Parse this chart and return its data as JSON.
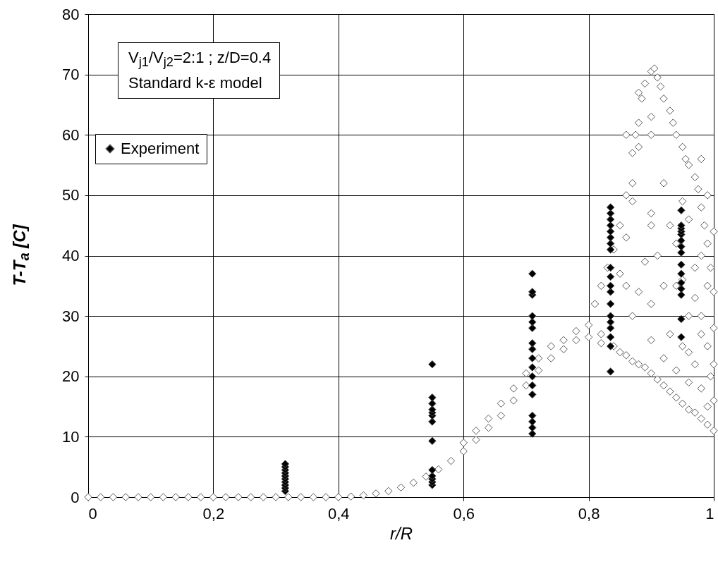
{
  "chart_data": {
    "type": "scatter",
    "xlabel": "r/R",
    "ylabel": "T-T$_{a}$ [C]",
    "annotations": [
      "V$_{j1}$/V$_{j2}$=2:1 ; z/D=0.4",
      "Standard k-ε model"
    ],
    "xlim": [
      0,
      1
    ],
    "ylim": [
      0,
      80
    ],
    "xticks": [
      0,
      {
        "value": 0.2,
        "label": "0,2"
      },
      {
        "value": 0.4,
        "label": "0,4"
      },
      {
        "value": 0.6,
        "label": "0,6"
      },
      {
        "value": 0.8,
        "label": "0,8"
      },
      1
    ],
    "yticks": [
      0,
      10,
      20,
      30,
      40,
      50,
      60,
      70,
      80
    ],
    "grid": true,
    "legend": "top left",
    "marker": "diamond",
    "series": [
      {
        "color": "#ffffff",
        "x": [
          0,
          0.02,
          0.04,
          0.06,
          0.08,
          0.1,
          0.12,
          0.14,
          0.16,
          0.18,
          0.2,
          0.22,
          0.24,
          0.26,
          0.28,
          0.3,
          0.32,
          0.34,
          0.36,
          0.38,
          0.4,
          0.42,
          0.44,
          0.46,
          0.48,
          0.5,
          0.52,
          0.54,
          0.56,
          0.58,
          0.6,
          0.6,
          0.62,
          0.62,
          0.64,
          0.64,
          0.66,
          0.66,
          0.68,
          0.68,
          0.7,
          0.7,
          0.72,
          0.72,
          0.74,
          0.74,
          0.76,
          0.76,
          0.78,
          0.78,
          0.8,
          0.8,
          0.82,
          0.82,
          0.84,
          0.85,
          0.86,
          0.87,
          0.88,
          0.89,
          0.9,
          0.91,
          0.92,
          0.93,
          0.94,
          0.95,
          0.96,
          0.97,
          0.98,
          0.99,
          1,
          0.81,
          0.82,
          0.83,
          0.84,
          0.85,
          0.86,
          0.87,
          0.87,
          0.875,
          0.88,
          0.885,
          0.89,
          0.9,
          0.905,
          0.91,
          0.915,
          0.92,
          0.93,
          0.935,
          0.94,
          0.95,
          0.955,
          0.96,
          0.97,
          0.975,
          0.98,
          0.985,
          0.99,
          0.995,
          1,
          1,
          1,
          1,
          0.995,
          0.99,
          0.98,
          0.86,
          0.88,
          0.9,
          0.9,
          0.88,
          0.87,
          0.86,
          0.9,
          0.9,
          0.91,
          0.89,
          0.9,
          0.92,
          0.88,
          0.87,
          0.85,
          0.86,
          0.94,
          0.94,
          0.96,
          0.95,
          0.97,
          0.96,
          0.93,
          0.95,
          0.97,
          0.98,
          0.96,
          0.99,
          0.92,
          0.93,
          0.95,
          0.97,
          0.98,
          0.9,
          0.92,
          0.94,
          0.96,
          0.98,
          0.99,
          1,
          0.99,
          0.98
        ],
        "values": [
          0,
          0,
          0,
          0,
          0,
          0,
          0,
          0,
          0,
          0,
          0,
          0,
          0,
          0,
          0,
          0,
          0,
          0,
          0,
          0,
          0,
          0.1,
          0.3,
          0.6,
          1,
          1.6,
          2.4,
          3.4,
          4.6,
          6,
          7.6,
          9,
          9.5,
          11,
          11.5,
          13,
          13.5,
          15.5,
          16,
          18,
          18.5,
          20.5,
          21,
          23,
          23,
          25,
          24.5,
          26,
          26,
          27.5,
          26.5,
          28.5,
          25.5,
          27,
          25,
          24,
          23.5,
          22.5,
          22,
          21.5,
          20.5,
          19.5,
          18.5,
          17.5,
          16.5,
          15.5,
          14.5,
          14,
          13,
          12,
          11,
          32,
          35,
          38,
          41,
          45,
          50,
          52,
          57,
          60,
          62,
          66,
          68.5,
          70.5,
          71,
          69.5,
          68,
          66,
          64,
          62,
          60,
          58,
          56,
          55,
          53,
          51,
          48,
          45,
          42,
          38,
          34,
          28,
          22,
          16,
          20,
          25,
          30,
          60,
          67,
          63,
          60,
          58,
          49,
          43,
          47,
          45,
          40,
          39,
          32,
          35,
          34,
          30,
          37,
          35,
          42,
          35,
          46,
          49,
          38,
          30,
          27,
          25,
          22,
          18,
          19,
          15,
          52,
          45,
          36,
          33,
          40,
          26,
          23,
          21,
          24,
          27,
          35,
          44,
          50,
          56
        ]
      },
      {
        "name": "Experiment",
        "color": "#000000",
        "x": [
          0.315,
          0.315,
          0.315,
          0.315,
          0.315,
          0.315,
          0.315,
          0.315,
          0.315,
          0.315,
          0.55,
          0.55,
          0.55,
          0.55,
          0.55,
          0.55,
          0.55,
          0.55,
          0.55,
          0.55,
          0.55,
          0.55,
          0.55,
          0.71,
          0.71,
          0.71,
          0.71,
          0.71,
          0.71,
          0.71,
          0.71,
          0.71,
          0.71,
          0.71,
          0.71,
          0.71,
          0.71,
          0.71,
          0.71,
          0.71,
          0.835,
          0.835,
          0.835,
          0.835,
          0.835,
          0.835,
          0.835,
          0.835,
          0.835,
          0.835,
          0.835,
          0.835,
          0.835,
          0.835,
          0.835,
          0.835,
          0.835,
          0.835,
          0.835,
          0.948,
          0.948,
          0.948,
          0.948,
          0.948,
          0.948,
          0.948,
          0.948,
          0.948,
          0.948,
          0.948,
          0.948,
          0.948,
          0.948,
          0.948
        ],
        "values": [
          1,
          1.5,
          2,
          2.5,
          3,
          3.5,
          4,
          4.5,
          5,
          5.5,
          2,
          2.5,
          3,
          3.5,
          4.5,
          9.3,
          12.5,
          13.5,
          14,
          14.5,
          15.5,
          16.5,
          22,
          10.5,
          11.5,
          12.5,
          13.5,
          17,
          18.5,
          20,
          21.5,
          23,
          24.5,
          25.5,
          28,
          29,
          30,
          33.5,
          34,
          37,
          20.8,
          25,
          26.5,
          28,
          29,
          30,
          32,
          34,
          35,
          36.5,
          38,
          41,
          42,
          43,
          44,
          45,
          46,
          47,
          48,
          26.5,
          29.5,
          33.5,
          34.5,
          35.5,
          37,
          38.5,
          40.5,
          41.5,
          42.5,
          43.5,
          44,
          44.5,
          45,
          47.5
        ]
      }
    ]
  }
}
